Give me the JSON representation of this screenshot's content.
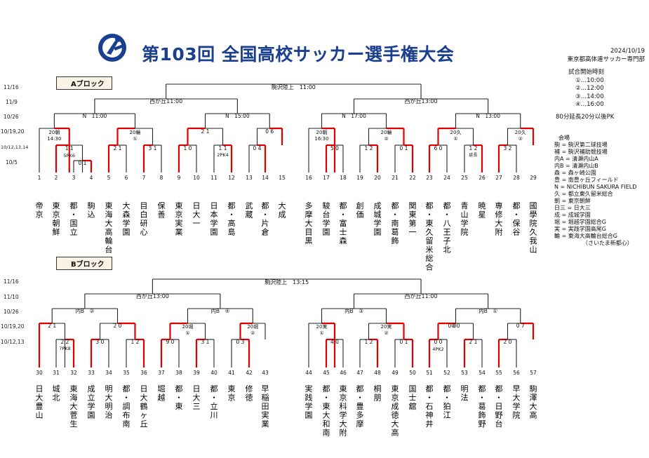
{
  "header": {
    "title": "第103回 全国高校サッカー選手権大会",
    "date": "2024/10/19",
    "org": "東京都高体連サッカー専門部"
  },
  "kickoff": {
    "heading": "試合開始時刻",
    "times": [
      "①…10:00",
      "②…12:00",
      "③…14:00",
      "④…16:00"
    ],
    "extra_time": "80分延長20分以後PK"
  },
  "venues": {
    "heading": "会場",
    "items": [
      "駒 = 駒沢第二球技場",
      "補 = 駒沢補助競技場",
      "内A = 清瀬内山A",
      "内B = 清瀬内山B",
      "森 = 森ヶ崎公園",
      "豊 = 南豊ヶ丘フィールド",
      "N = NICHIBUN SAKURA FIELD",
      "久 = 都立東久留米総合",
      "朝 = 東京朝鮮",
      "日三 = 日大三",
      "成 = 成城学園",
      "堀 = 堀越学園総合G",
      "実 = 実践学園高尾G",
      "輪 = 東海大高輪台総合G",
      "（さいたま新都心）"
    ]
  },
  "blocks": [
    {
      "label": "Aブロック",
      "dates": [
        "11/16",
        "11/9",
        "10/26",
        "10/19,20",
        "10/12,13,14",
        "10/5"
      ],
      "final_venue": "駒沢陸上　11:00",
      "semi_venues": [
        "西が丘11:00",
        "西が丘13:00"
      ],
      "qf_venues": [
        "N　11:00",
        "N　15:00",
        "N　17:00",
        "N　13:00"
      ],
      "r2_venues": [
        "20朝\n14:30",
        "20輪\n①",
        "20朝\n16:30",
        "20輪\n②",
        "20久\n①",
        "20久\n②"
      ],
      "teams": [
        {
          "n": "1",
          "name": "帝京"
        },
        {
          "n": "2",
          "name": "東京朝鮮"
        },
        {
          "n": "3",
          "name": "都・国立"
        },
        {
          "n": "4",
          "name": "駒込"
        },
        {
          "n": "5",
          "name": "東海大高輪台"
        },
        {
          "n": "6",
          "name": "大森学園"
        },
        {
          "n": "7",
          "name": "目白研心"
        },
        {
          "n": "8",
          "name": "保善"
        },
        {
          "n": "9",
          "name": "東京実業"
        },
        {
          "n": "10",
          "name": "日大一"
        },
        {
          "n": "11",
          "name": "日本学園"
        },
        {
          "n": "12",
          "name": "都・高島"
        },
        {
          "n": "13",
          "name": "武蔵"
        },
        {
          "n": "14",
          "name": "都・片倉"
        },
        {
          "n": "15",
          "name": "大成"
        },
        {
          "n": "16",
          "name": "多摩大目黒"
        },
        {
          "n": "17",
          "name": "駿台学園"
        },
        {
          "n": "18",
          "name": "都・富士森"
        },
        {
          "n": "19",
          "name": "創価"
        },
        {
          "n": "20",
          "name": "成城学園"
        },
        {
          "n": "21",
          "name": "都・南葛飾"
        },
        {
          "n": "22",
          "name": "関東第一"
        },
        {
          "n": "23",
          "name": "都・東久留米総合"
        },
        {
          "n": "24",
          "name": "都・八王子北"
        },
        {
          "n": "25",
          "name": "青山学院"
        },
        {
          "n": "26",
          "name": "暁星"
        },
        {
          "n": "27",
          "name": "専修大附"
        },
        {
          "n": "28",
          "name": "都・保谷"
        },
        {
          "n": "29",
          "name": "國學院久我山"
        }
      ],
      "scores": [
        "1 1",
        "5PK6",
        "0 1",
        "2 1",
        "3 1",
        "1 0",
        "1 1",
        "2PK4",
        "0 4",
        "0 6",
        "2 1",
        "5 0",
        "1 2",
        "0 1",
        "6 0",
        "1 2",
        "延長",
        "3 2"
      ]
    },
    {
      "label": "Bブロック",
      "dates": [
        "11/16",
        "11/10",
        "10/26",
        "10/19,20",
        "10/12,13"
      ],
      "final_venue": "駒沢陸上　13:15",
      "semi_venues": [
        "西が丘13:00",
        "西が丘11:00"
      ],
      "qf_venues": [
        "内B　②",
        "内B　④",
        "内B　③",
        "内B　①"
      ],
      "r2_venues": [
        "20堀\n①",
        "20堀\n②",
        "20実\n①",
        "20実\n②"
      ],
      "teams": [
        {
          "n": "30",
          "name": "日大豊山"
        },
        {
          "n": "31",
          "name": "城北"
        },
        {
          "n": "32",
          "name": "東海大菅生"
        },
        {
          "n": "33",
          "name": "成立学園"
        },
        {
          "n": "34",
          "name": "明大明治"
        },
        {
          "n": "35",
          "name": "都・調布南"
        },
        {
          "n": "36",
          "name": "日大鶴ヶ丘"
        },
        {
          "n": "37",
          "name": "堀越"
        },
        {
          "n": "38",
          "name": "都・東"
        },
        {
          "n": "39",
          "name": "日大三"
        },
        {
          "n": "40",
          "name": "都・立川"
        },
        {
          "n": "41",
          "name": "東京"
        },
        {
          "n": "42",
          "name": "修徳"
        },
        {
          "n": "43",
          "name": "早稲田実業"
        },
        {
          "n": "44",
          "name": "実践学園"
        },
        {
          "n": "45",
          "name": "都・東大和南"
        },
        {
          "n": "46",
          "name": "東京科学大附"
        },
        {
          "n": "47",
          "name": "都・豊多摩"
        },
        {
          "n": "48",
          "name": "桐朋"
        },
        {
          "n": "49",
          "name": "東京成徳大高"
        },
        {
          "n": "50",
          "name": "国士舘"
        },
        {
          "n": "51",
          "name": "都・石神井"
        },
        {
          "n": "52",
          "name": "都・狛江"
        },
        {
          "n": "53",
          "name": "明法"
        },
        {
          "n": "54",
          "name": "都・葛飾野"
        },
        {
          "n": "55",
          "name": "都・日野台"
        },
        {
          "n": "56",
          "name": "早大学院"
        },
        {
          "n": "57",
          "name": "駒澤大高"
        }
      ],
      "scores": [
        "2 1",
        "2 0",
        "2 2",
        "7PK8",
        "3 0",
        "1 2",
        "9 0",
        "3 1",
        "0 3",
        "4 0",
        "1 2",
        "0 1",
        "0 0",
        "4PK2",
        "0 0",
        "4PK3",
        "2 1",
        "0 7",
        "2 0"
      ]
    }
  ],
  "colors": {
    "winner": "#e00000",
    "line": "#222222",
    "title": "#1a3f8f",
    "label_bg": "#fbf3e6"
  }
}
